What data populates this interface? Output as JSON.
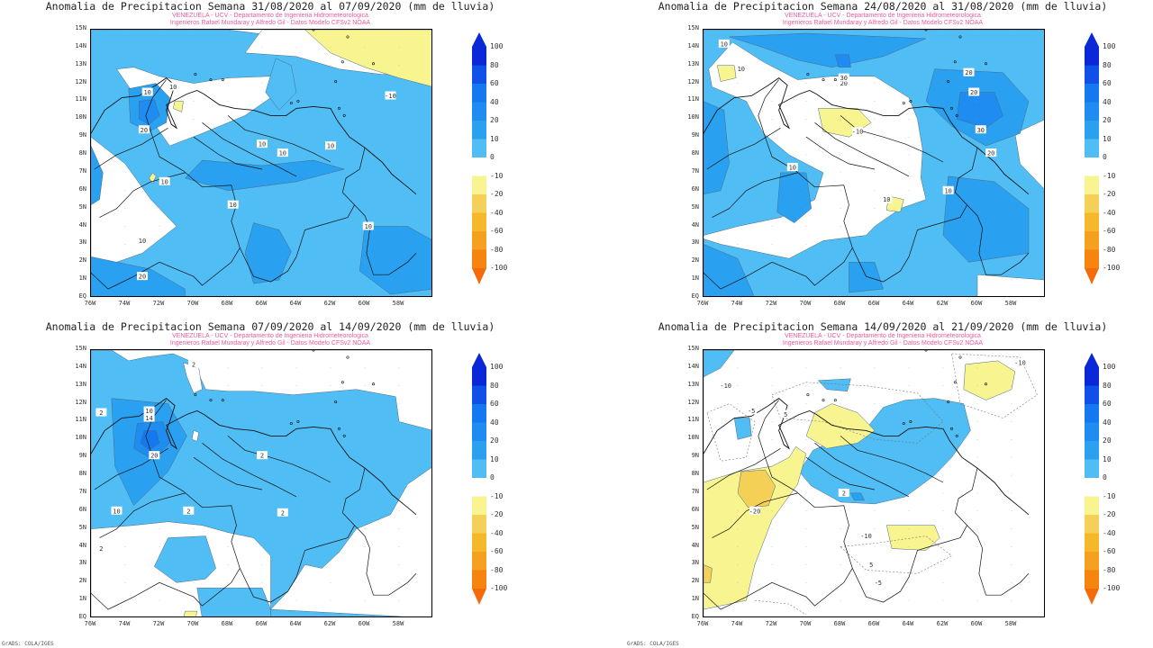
{
  "panels": [
    {
      "title": "Anomalia de Precipitacion Semana 31/08/2020 al 07/09/2020 (mm de lluvia)",
      "subtitle1": "VENEZUELA - UCV - Departamento de Ingenieria Hidrometeorologica",
      "subtitle2": "Ingenieros Rafael Mundaray y Alfredo Gil - Datos Modelo CFSv2 NOAA",
      "contour_labels": [
        "10",
        "10",
        "20",
        "10",
        "10",
        "10",
        "10",
        "10",
        "20",
        "-10",
        "10",
        "10"
      ]
    },
    {
      "title": "Anomalia de Precipitacion Semana 24/08/2020 al 31/08/2020 (mm de lluvia)",
      "subtitle1": "VENEZUELA - UCV - Departamento de Ingenieria Hidrometeorologica",
      "subtitle2": "Ingenieros Rafael Mundaray y Alfredo Gil - Datos Modelo CFSv2 NOAA",
      "contour_labels": [
        "10",
        "20",
        "30",
        "20",
        "10",
        "20",
        "30",
        "20",
        "10",
        "-10",
        "10",
        "10"
      ]
    },
    {
      "title": "Anomalia de Precipitacion Semana 07/09/2020 al 14/09/2020 (mm de lluvia)",
      "subtitle1": "VENEZUELA - UCV - Departamento de Ingenieria Hidrometeorologica",
      "subtitle2": "Ingenieros Rafael Mundaray y Alfredo Gil - Datos Modelo CFSv2 NOAA",
      "contour_labels": [
        "10",
        "14",
        "20",
        "10",
        "2",
        "2",
        "2",
        "2",
        "2",
        "2"
      ]
    },
    {
      "title": "Anomalia de Precipitacion Semana 14/09/2020 al 21/09/2020 (mm de lluvia)",
      "subtitle1": "VENEZUELA - UCV - Departamento de Ingenieria Hidrometeorologica",
      "subtitle2": "Ingenieros Rafael Mundaray y Alfredo Gil - Datos Modelo CFSv2 NOAA",
      "contour_labels": [
        "-10",
        "-20",
        "-10",
        "-5",
        "5",
        "2",
        "-10",
        "-5",
        "5"
      ]
    }
  ],
  "axes": {
    "lat_ticks": [
      "15N",
      "14N",
      "13N",
      "12N",
      "11N",
      "10N",
      "9N",
      "8N",
      "7N",
      "6N",
      "5N",
      "4N",
      "3N",
      "2N",
      "1N",
      "EQ"
    ],
    "lon_ticks": [
      "76W",
      "74W",
      "72W",
      "70W",
      "68W",
      "66W",
      "64W",
      "62W",
      "60W",
      "58W"
    ]
  },
  "colorbar": {
    "levels": [
      "100",
      "80",
      "60",
      "40",
      "20",
      "10",
      "0",
      "-10",
      "-20",
      "-40",
      "-60",
      "-80",
      "-100"
    ],
    "colors": [
      "#0a28d8",
      "#0f50e8",
      "#1478f0",
      "#1e8cf0",
      "#2aa0f0",
      "#50bef5",
      "#ffffff",
      "#f8f590",
      "#f5d056",
      "#f5b82a",
      "#f5a01e",
      "#f5850f",
      "#f56a0a"
    ]
  },
  "footer": "GrADS: COLA/IGES"
}
